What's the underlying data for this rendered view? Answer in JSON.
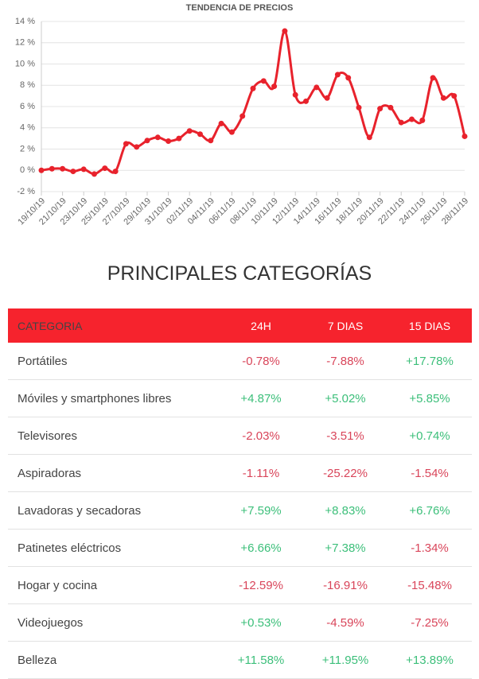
{
  "chart_data": {
    "type": "line",
    "title": "TENDENCIA DE PRECIOS",
    "categories": [
      "19/10/19",
      null,
      "21/10/19",
      null,
      "23/10/19",
      null,
      "25/10/19",
      null,
      "27/10/19",
      null,
      "29/10/19",
      null,
      "31/10/19",
      null,
      "02/11/19",
      null,
      "04/11/19",
      null,
      "06/11/19",
      null,
      "08/11/19",
      null,
      "10/11/19",
      null,
      "12/11/19",
      null,
      "14/11/19",
      null,
      "16/11/19",
      null,
      "18/11/19",
      null,
      "20/11/19",
      null,
      "22/11/19",
      null,
      "24/11/19",
      null,
      "26/11/19",
      null,
      "28/11/19"
    ],
    "values": [
      0,
      0.15,
      0.15,
      -0.1,
      0.1,
      -0.35,
      0.2,
      -0.1,
      2.5,
      2.2,
      2.8,
      3.1,
      2.75,
      3.0,
      3.7,
      3.4,
      2.8,
      4.4,
      3.6,
      5.1,
      7.7,
      8.4,
      7.9,
      13.1,
      7.1,
      6.5,
      7.8,
      6.8,
      9.0,
      8.7,
      5.9,
      3.1,
      5.8,
      5.9,
      4.5,
      4.8,
      4.7,
      8.7,
      6.8,
      7.0,
      3.2
    ],
    "color": "#e8222c",
    "ylim": [
      -2,
      14
    ],
    "yticks": [
      {
        "value": -2,
        "label": "-2 %"
      },
      {
        "value": 0,
        "label": "0 %"
      },
      {
        "value": 2,
        "label": "2 %"
      },
      {
        "value": 4,
        "label": "4 %"
      },
      {
        "value": 6,
        "label": "6 %"
      },
      {
        "value": 8,
        "label": "8 %"
      },
      {
        "value": 10,
        "label": "10 %"
      },
      {
        "value": 12,
        "label": "12 %"
      },
      {
        "value": 14,
        "label": "14 %"
      }
    ],
    "grid": true
  },
  "table": {
    "title": "PRINCIPALES CATEGORÍAS",
    "columns": [
      "CATEGORIA",
      "24H",
      "7 DIAS",
      "15 DIAS"
    ],
    "rows": [
      [
        "Portátiles",
        "-0.78%",
        "-7.88%",
        "+17.78%"
      ],
      [
        "Móviles y smartphones libres",
        "+4.87%",
        "+5.02%",
        "+5.85%"
      ],
      [
        "Televisores",
        "-2.03%",
        "-3.51%",
        "+0.74%"
      ],
      [
        "Aspiradoras",
        "-1.11%",
        "-25.22%",
        "-1.54%"
      ],
      [
        "Lavadoras y secadoras",
        "+7.59%",
        "+8.83%",
        "+6.76%"
      ],
      [
        "Patinetes eléctricos",
        "+6.66%",
        "+7.38%",
        "-1.34%"
      ],
      [
        "Hogar y cocina",
        "-12.59%",
        "-16.91%",
        "-15.48%"
      ],
      [
        "Videojuegos",
        "+0.53%",
        "-4.59%",
        "-7.25%"
      ],
      [
        "Belleza",
        "+11.58%",
        "+11.95%",
        "+13.89%"
      ]
    ]
  }
}
